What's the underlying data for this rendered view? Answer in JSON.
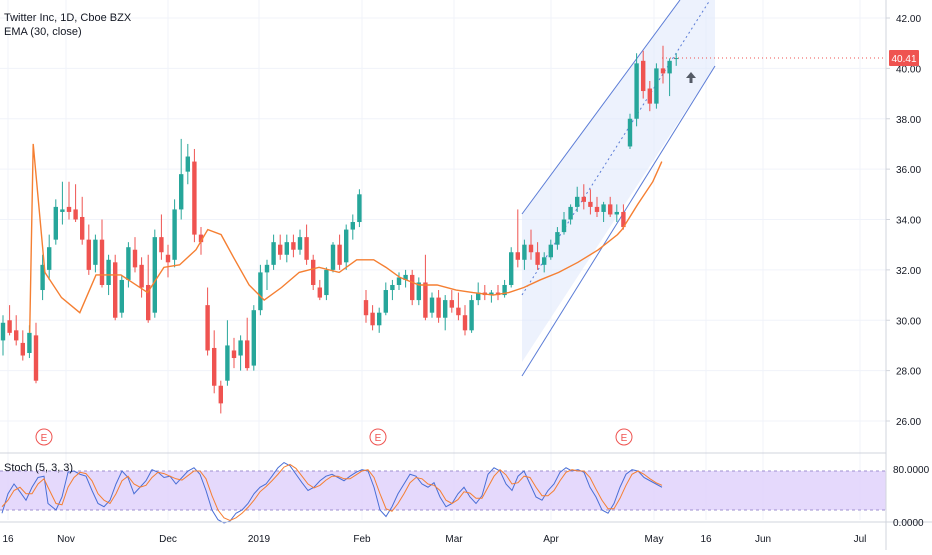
{
  "header": {
    "symbol": "Twitter Inc, 1D, Cboe BZX",
    "indicator": "EMA (30, close)"
  },
  "stoch": {
    "label": "Stoch (5, 3, 3)",
    "ticks": [
      "80.0000",
      "0.0000"
    ]
  },
  "price_badge": "40.41",
  "earnings_label": "E",
  "colors": {
    "up": "#26a69a",
    "down": "#ef5350",
    "ema": "#f57f32",
    "channel": "#5b7cd6",
    "stoch_k": "#4a6fd6",
    "stoch_d": "#f57f32",
    "stoch_band": "#e1d2fb"
  },
  "chart_data": {
    "type": "candlestick",
    "y_ticks": [
      "42.00",
      "40.00",
      "38.00",
      "36.00",
      "34.00",
      "32.00",
      "30.00",
      "28.00",
      "26.00"
    ],
    "x_ticks": [
      "16",
      "Nov",
      "Dec",
      "2019",
      "Feb",
      "Mar",
      "Apr",
      "May",
      "16",
      "Jun",
      "Jul"
    ],
    "ylim": [
      25.2,
      42.6
    ],
    "last_price": 40.41,
    "earnings_markers": 3,
    "candles": [
      [
        29.2,
        30.2,
        28.6,
        29.9
      ],
      [
        30.0,
        30.6,
        29.4,
        29.5
      ],
      [
        29.6,
        30.2,
        29.0,
        29.2
      ],
      [
        29.1,
        29.6,
        28.4,
        28.6
      ],
      [
        28.7,
        29.8,
        28.5,
        29.5
      ],
      [
        29.4,
        29.9,
        27.5,
        27.6
      ],
      [
        31.2,
        32.6,
        30.8,
        32.2
      ],
      [
        32.0,
        33.4,
        31.6,
        32.9
      ],
      [
        33.2,
        34.8,
        33.0,
        34.5
      ],
      [
        34.3,
        35.5,
        33.8,
        34.4
      ],
      [
        34.5,
        35.5,
        34.0,
        34.3
      ],
      [
        34.4,
        35.4,
        33.9,
        34.0
      ],
      [
        34.1,
        34.9,
        33.0,
        33.2
      ],
      [
        33.2,
        33.8,
        31.8,
        32.0
      ],
      [
        32.2,
        33.4,
        31.9,
        33.2
      ],
      [
        33.2,
        34.0,
        31.3,
        31.4
      ],
      [
        31.4,
        32.6,
        31.0,
        32.4
      ],
      [
        32.3,
        32.6,
        30.0,
        30.1
      ],
      [
        30.3,
        31.8,
        30.1,
        31.6
      ],
      [
        31.6,
        33.1,
        31.3,
        32.9
      ],
      [
        32.8,
        33.3,
        31.9,
        32.1
      ],
      [
        32.2,
        32.5,
        30.9,
        31.3
      ],
      [
        31.4,
        32.6,
        29.9,
        30.0
      ],
      [
        30.3,
        33.6,
        30.1,
        33.3
      ],
      [
        33.3,
        34.2,
        32.4,
        32.7
      ],
      [
        32.6,
        33.0,
        31.7,
        32.3
      ],
      [
        32.4,
        34.8,
        32.1,
        34.4
      ],
      [
        34.4,
        37.2,
        34.0,
        35.8
      ],
      [
        35.9,
        37.0,
        35.4,
        36.5
      ],
      [
        36.3,
        36.8,
        33.1,
        33.4
      ],
      [
        33.4,
        33.7,
        32.6,
        33.1
      ],
      [
        30.6,
        31.3,
        28.6,
        28.8
      ],
      [
        28.9,
        29.6,
        27.1,
        27.4
      ],
      [
        27.4,
        27.6,
        26.3,
        26.7
      ],
      [
        27.6,
        30.0,
        27.4,
        29.0
      ],
      [
        28.8,
        29.3,
        28.1,
        28.5
      ],
      [
        28.6,
        29.4,
        28.0,
        29.2
      ],
      [
        29.2,
        30.1,
        28.0,
        28.1
      ],
      [
        28.2,
        30.6,
        28.0,
        30.4
      ],
      [
        30.4,
        32.2,
        30.2,
        31.9
      ],
      [
        31.9,
        32.4,
        31.2,
        32.2
      ],
      [
        32.2,
        33.4,
        32.0,
        33.1
      ],
      [
        33.0,
        33.4,
        32.4,
        32.6
      ],
      [
        32.6,
        33.4,
        32.3,
        33.1
      ],
      [
        33.1,
        33.4,
        32.5,
        32.8
      ],
      [
        32.8,
        33.6,
        32.6,
        33.3
      ],
      [
        33.3,
        33.8,
        32.2,
        32.4
      ],
      [
        32.4,
        32.6,
        31.2,
        31.4
      ],
      [
        31.3,
        31.6,
        30.8,
        30.9
      ],
      [
        31.0,
        32.1,
        30.8,
        32.0
      ],
      [
        32.0,
        33.1,
        31.9,
        33.0
      ],
      [
        33.0,
        33.4,
        32.0,
        32.2
      ],
      [
        32.3,
        33.8,
        32.0,
        33.6
      ],
      [
        33.6,
        34.2,
        33.2,
        33.9
      ],
      [
        33.9,
        35.2,
        33.7,
        35.0
      ],
      [
        30.8,
        31.2,
        29.9,
        30.2
      ],
      [
        30.3,
        30.6,
        29.6,
        29.8
      ],
      [
        29.8,
        30.5,
        29.5,
        30.3
      ],
      [
        30.3,
        31.5,
        30.2,
        31.2
      ],
      [
        31.2,
        31.6,
        30.8,
        31.4
      ],
      [
        31.4,
        31.9,
        31.2,
        31.7
      ],
      [
        31.6,
        32.0,
        31.3,
        31.8
      ],
      [
        31.8,
        32.0,
        30.6,
        30.8
      ],
      [
        30.8,
        31.7,
        30.6,
        31.5
      ],
      [
        31.5,
        32.6,
        30.0,
        30.1
      ],
      [
        30.3,
        31.1,
        30.1,
        30.9
      ],
      [
        30.9,
        31.2,
        29.9,
        30.1
      ],
      [
        30.1,
        31.0,
        29.6,
        30.8
      ],
      [
        30.8,
        31.2,
        30.3,
        30.5
      ],
      [
        30.5,
        31.1,
        30.0,
        30.2
      ],
      [
        30.2,
        30.6,
        29.4,
        29.6
      ],
      [
        29.6,
        31.0,
        29.5,
        30.8
      ],
      [
        30.8,
        31.5,
        30.6,
        31.1
      ],
      [
        31.1,
        31.4,
        30.8,
        31.0
      ],
      [
        31.0,
        31.2,
        30.7,
        31.1
      ],
      [
        31.1,
        31.4,
        30.8,
        31.0
      ],
      [
        31.0,
        31.6,
        30.9,
        31.4
      ],
      [
        31.4,
        32.9,
        31.3,
        32.7
      ],
      [
        32.7,
        34.4,
        32.1,
        32.4
      ],
      [
        32.4,
        33.2,
        32.0,
        33.0
      ],
      [
        33.0,
        33.6,
        32.4,
        32.7
      ],
      [
        32.7,
        33.1,
        32.0,
        32.2
      ],
      [
        32.2,
        32.7,
        31.9,
        32.5
      ],
      [
        32.5,
        33.2,
        32.4,
        33.0
      ],
      [
        33.0,
        33.7,
        32.8,
        33.5
      ],
      [
        33.5,
        34.3,
        33.4,
        34.0
      ],
      [
        34.0,
        34.6,
        33.8,
        34.5
      ],
      [
        34.5,
        35.3,
        34.3,
        34.9
      ],
      [
        34.9,
        35.4,
        34.4,
        34.7
      ],
      [
        34.7,
        35.2,
        34.2,
        34.5
      ],
      [
        34.5,
        34.9,
        34.1,
        34.3
      ],
      [
        34.3,
        34.7,
        33.9,
        34.6
      ],
      [
        34.6,
        34.9,
        34.1,
        34.2
      ],
      [
        34.2,
        34.6,
        33.9,
        34.3
      ],
      [
        34.3,
        34.6,
        33.6,
        33.7
      ],
      [
        36.9,
        38.2,
        36.8,
        38.0
      ],
      [
        38.0,
        40.6,
        37.7,
        40.2
      ],
      [
        40.3,
        40.7,
        38.8,
        39.1
      ],
      [
        39.2,
        39.5,
        38.3,
        38.6
      ],
      [
        38.6,
        40.2,
        38.4,
        40.0
      ],
      [
        40.0,
        40.9,
        39.4,
        39.8
      ],
      [
        39.8,
        40.4,
        38.9,
        40.3
      ],
      [
        40.4,
        40.6,
        40.1,
        40.41
      ]
    ],
    "ema": [
      [
        29.7,
        29.5
      ],
      [
        33.2,
        37.0
      ],
      [
        44.9,
        31.9
      ],
      [
        61.5,
        30.9
      ],
      [
        79.8,
        30.3
      ],
      [
        96.0,
        31.8
      ],
      [
        120.9,
        31.8
      ],
      [
        147.6,
        31.1
      ],
      [
        163.9,
        32.1
      ],
      [
        179.6,
        32.2
      ],
      [
        196.0,
        32.8
      ],
      [
        207.8,
        33.6
      ],
      [
        221.1,
        33.4
      ],
      [
        233.5,
        32.5
      ],
      [
        249.1,
        31.4
      ],
      [
        264.2,
        30.8
      ],
      [
        281.5,
        31.3
      ],
      [
        299.2,
        31.9
      ],
      [
        319.0,
        32.1
      ],
      [
        339.2,
        31.9
      ],
      [
        356.7,
        32.4
      ],
      [
        373.7,
        32.4
      ],
      [
        386.0,
        32.1
      ],
      [
        399.9,
        31.7
      ],
      [
        419.1,
        31.4
      ],
      [
        437.1,
        31.4
      ],
      [
        456.2,
        31.2
      ],
      [
        472.9,
        31.1
      ],
      [
        493.2,
        31.0
      ],
      [
        508.8,
        31.1
      ],
      [
        523.8,
        31.3
      ],
      [
        540.1,
        31.6
      ],
      [
        558.7,
        31.9
      ],
      [
        577.9,
        32.3
      ],
      [
        598.4,
        32.8
      ],
      [
        617.5,
        33.4
      ],
      [
        622.0,
        33.6
      ],
      [
        637.7,
        34.6
      ],
      [
        652.8,
        35.5
      ],
      [
        661.8,
        36.3
      ]
    ],
    "stoch_k": [
      [
        2,
        15
      ],
      [
        8,
        45
      ],
      [
        14,
        60
      ],
      [
        20,
        48
      ],
      [
        26,
        35
      ],
      [
        32,
        55
      ],
      [
        38,
        70
      ],
      [
        44,
        72
      ],
      [
        48,
        30
      ],
      [
        56,
        20
      ],
      [
        62,
        40
      ],
      [
        68,
        78
      ],
      [
        74,
        80
      ],
      [
        80,
        75
      ],
      [
        86,
        72
      ],
      [
        92,
        50
      ],
      [
        98,
        30
      ],
      [
        104,
        25
      ],
      [
        110,
        35
      ],
      [
        116,
        60
      ],
      [
        122,
        80
      ],
      [
        128,
        70
      ],
      [
        134,
        45
      ],
      [
        140,
        55
      ],
      [
        146,
        65
      ],
      [
        152,
        82
      ],
      [
        158,
        78
      ],
      [
        164,
        70
      ],
      [
        170,
        72
      ],
      [
        176,
        60
      ],
      [
        182,
        70
      ],
      [
        188,
        80
      ],
      [
        194,
        85
      ],
      [
        200,
        75
      ],
      [
        206,
        50
      ],
      [
        212,
        20
      ],
      [
        218,
        5
      ],
      [
        224,
        0
      ],
      [
        230,
        3
      ],
      [
        236,
        15
      ],
      [
        242,
        20
      ],
      [
        248,
        30
      ],
      [
        254,
        45
      ],
      [
        260,
        55
      ],
      [
        266,
        60
      ],
      [
        272,
        72
      ],
      [
        278,
        85
      ],
      [
        284,
        93
      ],
      [
        290,
        88
      ],
      [
        296,
        75
      ],
      [
        302,
        62
      ],
      [
        308,
        50
      ],
      [
        314,
        55
      ],
      [
        320,
        65
      ],
      [
        326,
        72
      ],
      [
        332,
        75
      ],
      [
        338,
        70
      ],
      [
        344,
        65
      ],
      [
        350,
        72
      ],
      [
        356,
        78
      ],
      [
        362,
        82
      ],
      [
        368,
        80
      ],
      [
        374,
        55
      ],
      [
        380,
        20
      ],
      [
        386,
        10
      ],
      [
        392,
        25
      ],
      [
        398,
        45
      ],
      [
        404,
        60
      ],
      [
        410,
        75
      ],
      [
        416,
        72
      ],
      [
        422,
        60
      ],
      [
        428,
        55
      ],
      [
        434,
        62
      ],
      [
        440,
        40
      ],
      [
        446,
        25
      ],
      [
        452,
        30
      ],
      [
        458,
        45
      ],
      [
        464,
        55
      ],
      [
        470,
        40
      ],
      [
        476,
        30
      ],
      [
        482,
        42
      ],
      [
        488,
        75
      ],
      [
        494,
        85
      ],
      [
        500,
        80
      ],
      [
        506,
        60
      ],
      [
        512,
        50
      ],
      [
        518,
        72
      ],
      [
        524,
        80
      ],
      [
        530,
        60
      ],
      [
        536,
        40
      ],
      [
        542,
        35
      ],
      [
        548,
        50
      ],
      [
        554,
        60
      ],
      [
        560,
        78
      ],
      [
        566,
        85
      ],
      [
        572,
        80
      ],
      [
        578,
        82
      ],
      [
        584,
        78
      ],
      [
        590,
        55
      ],
      [
        596,
        40
      ],
      [
        602,
        20
      ],
      [
        608,
        15
      ],
      [
        614,
        30
      ],
      [
        620,
        55
      ],
      [
        626,
        75
      ],
      [
        632,
        82
      ],
      [
        638,
        80
      ],
      [
        644,
        70
      ],
      [
        650,
        65
      ],
      [
        656,
        60
      ],
      [
        662,
        55
      ]
    ],
    "stoch_d": [
      [
        2,
        25
      ],
      [
        8,
        35
      ],
      [
        14,
        50
      ],
      [
        20,
        55
      ],
      [
        26,
        45
      ],
      [
        32,
        45
      ],
      [
        38,
        60
      ],
      [
        44,
        68
      ],
      [
        48,
        55
      ],
      [
        56,
        30
      ],
      [
        62,
        28
      ],
      [
        68,
        55
      ],
      [
        74,
        70
      ],
      [
        80,
        78
      ],
      [
        86,
        76
      ],
      [
        92,
        65
      ],
      [
        98,
        45
      ],
      [
        104,
        35
      ],
      [
        110,
        30
      ],
      [
        116,
        45
      ],
      [
        122,
        65
      ],
      [
        128,
        72
      ],
      [
        134,
        60
      ],
      [
        140,
        55
      ],
      [
        146,
        58
      ],
      [
        152,
        70
      ],
      [
        158,
        78
      ],
      [
        164,
        76
      ],
      [
        170,
        72
      ],
      [
        176,
        68
      ],
      [
        182,
        66
      ],
      [
        188,
        73
      ],
      [
        194,
        80
      ],
      [
        200,
        80
      ],
      [
        206,
        68
      ],
      [
        212,
        42
      ],
      [
        218,
        20
      ],
      [
        224,
        8
      ],
      [
        230,
        4
      ],
      [
        236,
        8
      ],
      [
        242,
        15
      ],
      [
        248,
        24
      ],
      [
        254,
        35
      ],
      [
        260,
        48
      ],
      [
        266,
        56
      ],
      [
        272,
        65
      ],
      [
        278,
        75
      ],
      [
        284,
        86
      ],
      [
        290,
        90
      ],
      [
        296,
        84
      ],
      [
        302,
        72
      ],
      [
        308,
        60
      ],
      [
        314,
        54
      ],
      [
        320,
        58
      ],
      [
        326,
        66
      ],
      [
        332,
        72
      ],
      [
        338,
        72
      ],
      [
        344,
        68
      ],
      [
        350,
        68
      ],
      [
        356,
        74
      ],
      [
        362,
        80
      ],
      [
        368,
        82
      ],
      [
        374,
        70
      ],
      [
        380,
        45
      ],
      [
        386,
        22
      ],
      [
        392,
        18
      ],
      [
        398,
        30
      ],
      [
        404,
        45
      ],
      [
        410,
        62
      ],
      [
        416,
        70
      ],
      [
        422,
        68
      ],
      [
        428,
        60
      ],
      [
        434,
        58
      ],
      [
        440,
        50
      ],
      [
        446,
        35
      ],
      [
        452,
        30
      ],
      [
        458,
        36
      ],
      [
        464,
        48
      ],
      [
        470,
        46
      ],
      [
        476,
        38
      ],
      [
        482,
        38
      ],
      [
        488,
        55
      ],
      [
        494,
        72
      ],
      [
        500,
        82
      ],
      [
        506,
        74
      ],
      [
        512,
        60
      ],
      [
        518,
        62
      ],
      [
        524,
        72
      ],
      [
        530,
        70
      ],
      [
        536,
        55
      ],
      [
        542,
        42
      ],
      [
        548,
        42
      ],
      [
        554,
        50
      ],
      [
        560,
        65
      ],
      [
        566,
        78
      ],
      [
        572,
        82
      ],
      [
        578,
        80
      ],
      [
        584,
        80
      ],
      [
        590,
        70
      ],
      [
        596,
        52
      ],
      [
        602,
        35
      ],
      [
        608,
        22
      ],
      [
        614,
        22
      ],
      [
        620,
        38
      ],
      [
        626,
        58
      ],
      [
        632,
        75
      ],
      [
        638,
        80
      ],
      [
        644,
        75
      ],
      [
        650,
        68
      ],
      [
        656,
        62
      ],
      [
        662,
        58
      ]
    ]
  }
}
